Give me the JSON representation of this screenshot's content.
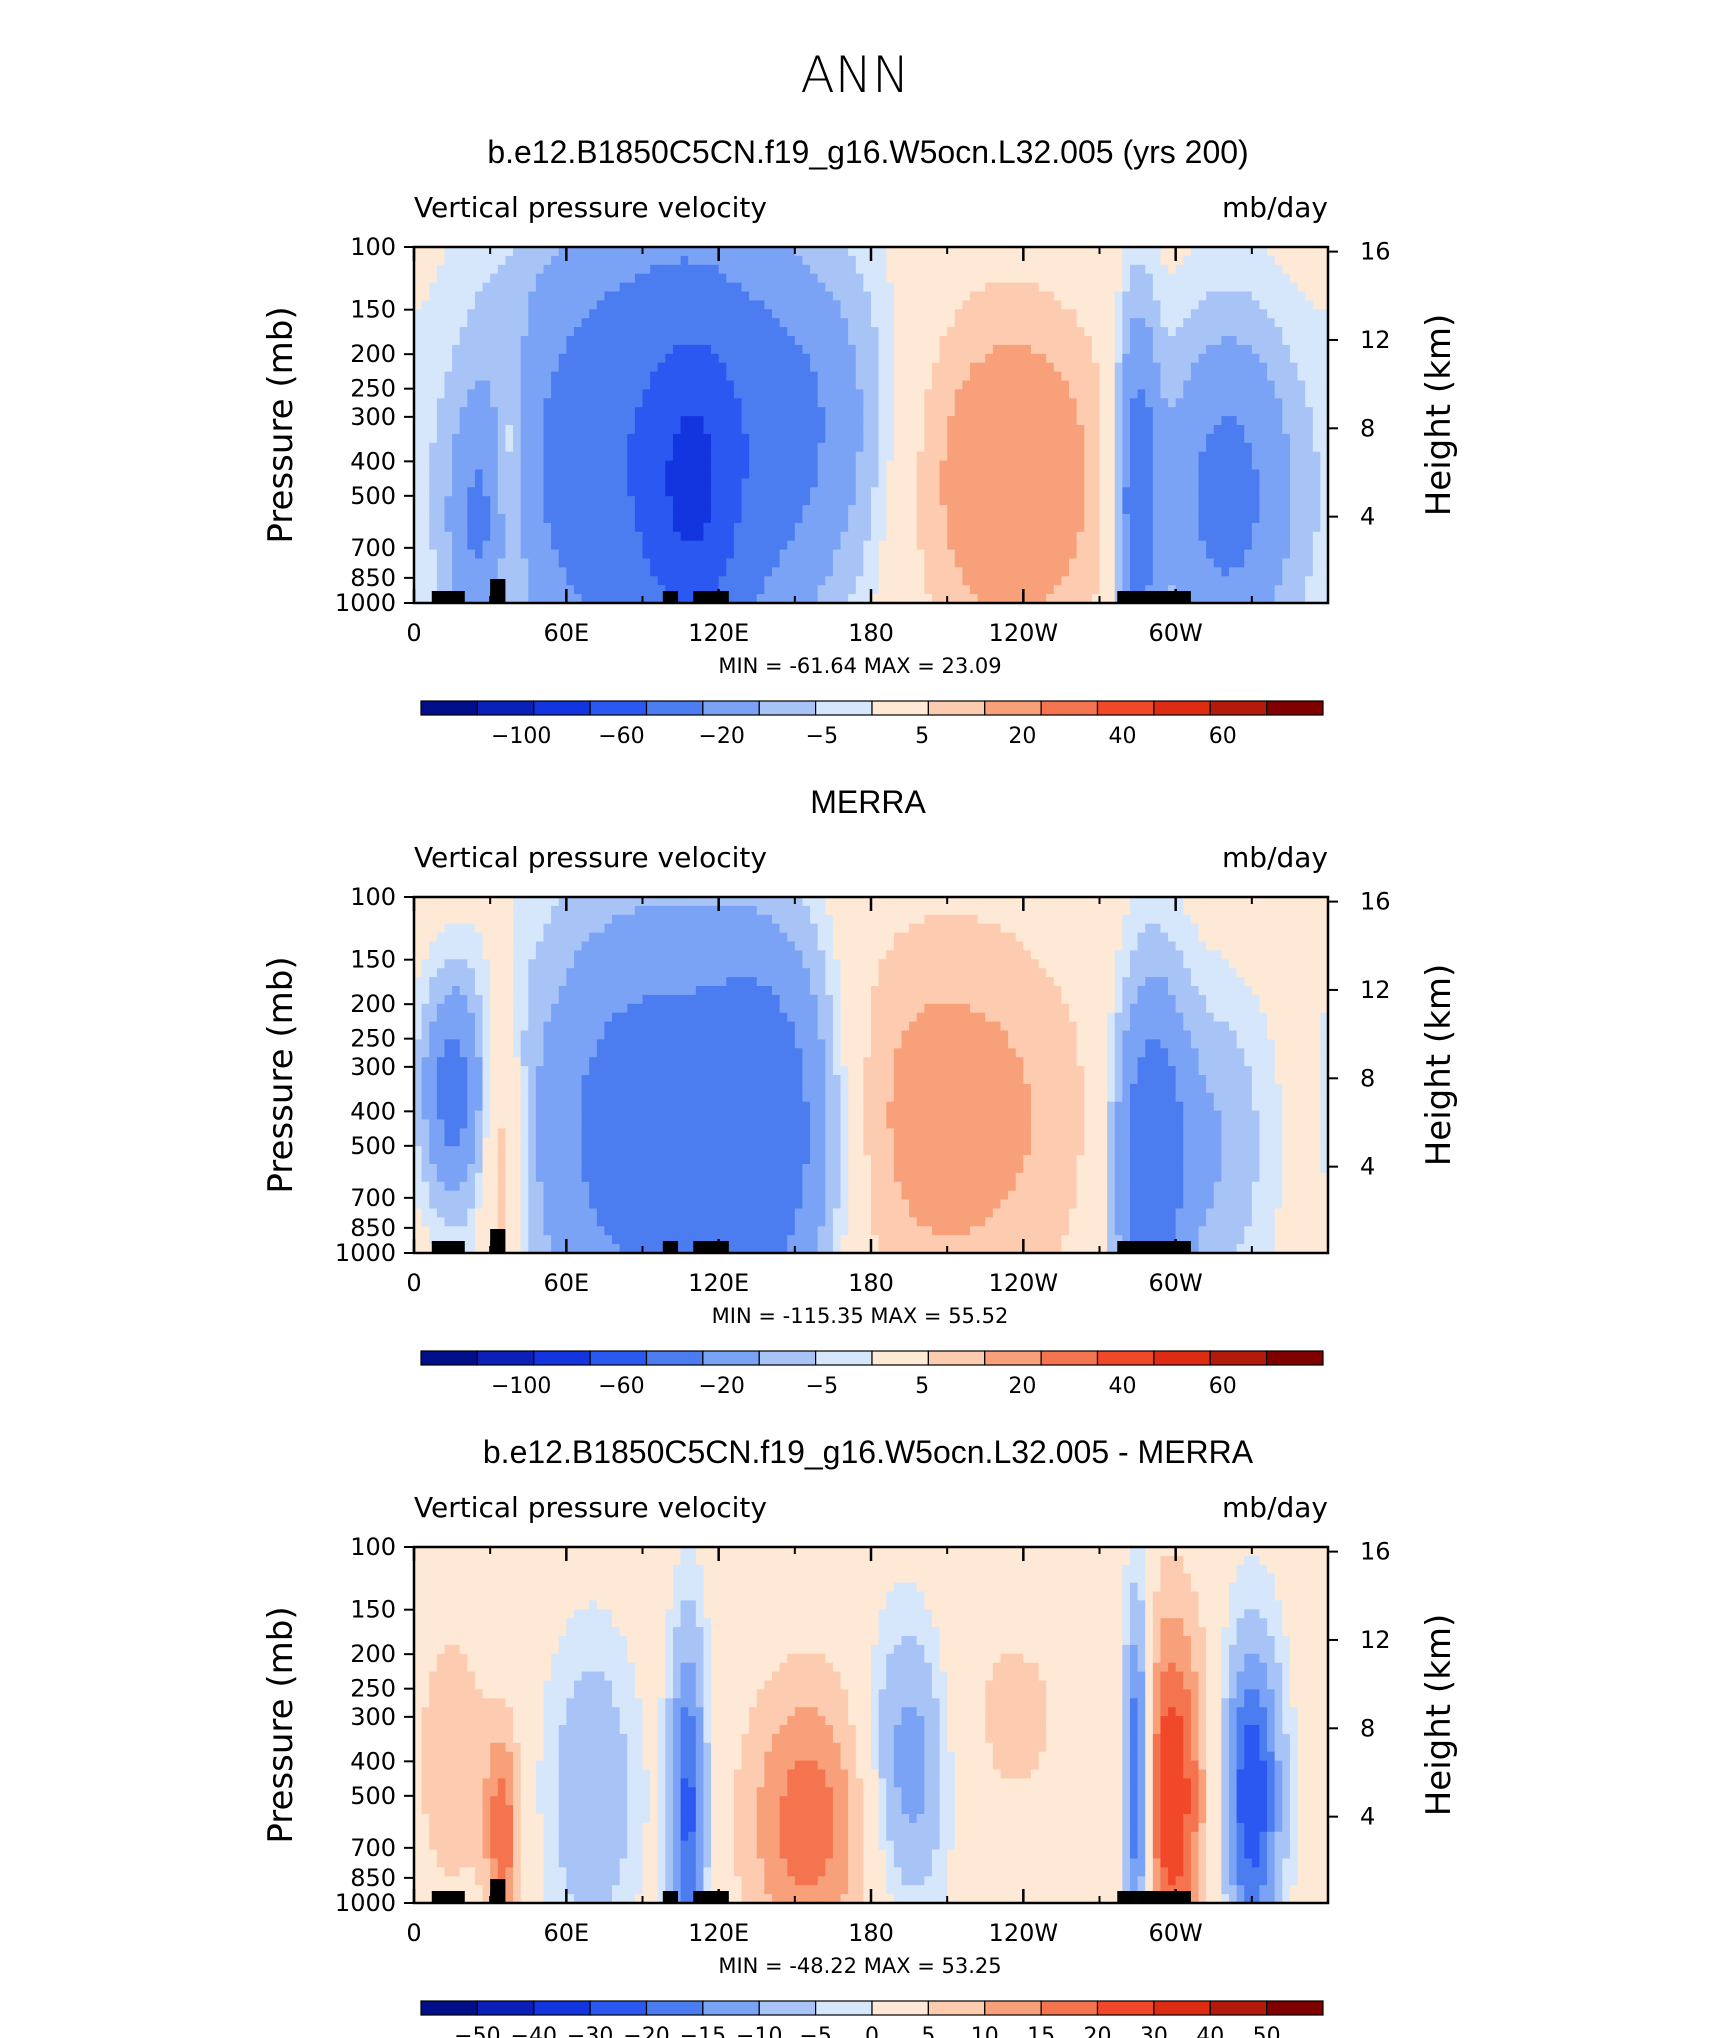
{
  "figure": {
    "title": "ANN"
  },
  "chart_data": [
    {
      "type": "heatmap",
      "title": "b.e12.B1850C5CN.f19_g16.W5ocn.L32.005 (yrs 200)",
      "left_string": "Vertical pressure velocity",
      "right_string": "mb/day",
      "ylabel": "Pressure (mb)",
      "ylabel_right": "Height (km)",
      "y_ticks": [
        "100",
        "150",
        "200",
        "250",
        "300",
        "400",
        "500",
        "700",
        "850",
        "1000"
      ],
      "y_right_ticks": [
        "16",
        "12",
        "8",
        "4"
      ],
      "x_ticks": [
        "0",
        "60E",
        "120E",
        "180",
        "120W",
        "60W"
      ],
      "stats": {
        "min_label": "MIN",
        "min": "-61.64",
        "max_label": "MAX",
        "max": "23.09"
      },
      "levels": [
        -100,
        -80,
        -60,
        -40,
        -20,
        -10,
        -5,
        -2,
        2,
        5,
        10,
        20,
        30,
        40,
        50,
        60
      ],
      "level_labels": [
        "−100",
        "−60",
        "−20",
        "−5",
        "5",
        "20",
        "40",
        "60"
      ],
      "features": [
        {
          "lon": 25,
          "p": 600,
          "v": -15,
          "w": 8,
          "h": 0.45
        },
        {
          "lon": 38,
          "p": 450,
          "v": 12,
          "w": 5,
          "h": 0.55
        },
        {
          "lon": 95,
          "p": 400,
          "v": -38,
          "w": 40,
          "h": 0.9
        },
        {
          "lon": 110,
          "p": 500,
          "v": -30,
          "w": 12,
          "h": 0.6
        },
        {
          "lon": 150,
          "p": 300,
          "v": -12,
          "w": 25,
          "h": 0.6
        },
        {
          "lon": 235,
          "p": 450,
          "v": 18,
          "w": 28,
          "h": 0.7
        },
        {
          "lon": 285,
          "p": 500,
          "v": -30,
          "w": 6,
          "h": 0.7
        },
        {
          "lon": 320,
          "p": 500,
          "v": -25,
          "w": 18,
          "h": 0.65
        }
      ]
    },
    {
      "type": "heatmap",
      "title": "MERRA",
      "left_string": "Vertical pressure velocity",
      "right_string": "mb/day",
      "ylabel": "Pressure (mb)",
      "ylabel_right": "Height (km)",
      "y_ticks": [
        "100",
        "150",
        "200",
        "250",
        "300",
        "400",
        "500",
        "700",
        "850",
        "1000"
      ],
      "y_right_ticks": [
        "16",
        "12",
        "8",
        "4"
      ],
      "x_ticks": [
        "0",
        "60E",
        "120E",
        "180",
        "120W",
        "60W"
      ],
      "stats": {
        "min_label": "MIN",
        "min": "-115.35",
        "max_label": "MAX",
        "max": "55.52"
      },
      "levels": [
        -100,
        -80,
        -60,
        -40,
        -20,
        -10,
        -5,
        -2,
        2,
        5,
        10,
        20,
        30,
        40,
        50,
        60
      ],
      "level_labels": [
        "−100",
        "−60",
        "−20",
        "−5",
        "5",
        "20",
        "40",
        "60"
      ],
      "features": [
        {
          "lon": 15,
          "p": 350,
          "v": -25,
          "w": 8,
          "h": 0.4
        },
        {
          "lon": 35,
          "p": 550,
          "v": 12,
          "w": 6,
          "h": 0.55
        },
        {
          "lon": 90,
          "p": 450,
          "v": -28,
          "w": 30,
          "h": 0.85
        },
        {
          "lon": 140,
          "p": 450,
          "v": -30,
          "w": 20,
          "h": 0.75
        },
        {
          "lon": 210,
          "p": 420,
          "v": 14,
          "w": 40,
          "h": 0.8
        },
        {
          "lon": 290,
          "p": 550,
          "v": -32,
          "w": 10,
          "h": 0.7
        },
        {
          "lon": 315,
          "p": 500,
          "v": -10,
          "w": 15,
          "h": 0.6
        }
      ]
    },
    {
      "type": "heatmap",
      "title": "b.e12.B1850C5CN.f19_g16.W5ocn.L32.005 - MERRA",
      "left_string": "Vertical pressure velocity",
      "right_string": "mb/day",
      "ylabel": "Pressure (mb)",
      "ylabel_right": "Height (km)",
      "y_ticks": [
        "100",
        "150",
        "200",
        "250",
        "300",
        "400",
        "500",
        "700",
        "850",
        "1000"
      ],
      "y_right_ticks": [
        "16",
        "12",
        "8",
        "4"
      ],
      "x_ticks": [
        "0",
        "60E",
        "120E",
        "180",
        "120W",
        "60W"
      ],
      "stats": {
        "min_label": "MIN",
        "min": "-48.22",
        "max_label": "MAX",
        "max": "53.25"
      },
      "levels": [
        -50,
        -40,
        -30,
        -20,
        -15,
        -10,
        -5,
        -2,
        2,
        5,
        10,
        15,
        20,
        30,
        40,
        50
      ],
      "level_labels": [
        "−50",
        "−40",
        "−30",
        "−20",
        "−15",
        "−10",
        "−5",
        "0",
        "5",
        "10",
        "15",
        "20",
        "30",
        "40",
        "50"
      ],
      "features": [
        {
          "lon": 15,
          "p": 400,
          "v": 10,
          "w": 10,
          "h": 0.55
        },
        {
          "lon": 35,
          "p": 650,
          "v": 18,
          "w": 5,
          "h": 0.45
        },
        {
          "lon": 70,
          "p": 500,
          "v": -10,
          "w": 12,
          "h": 0.6
        },
        {
          "lon": 108,
          "p": 550,
          "v": -22,
          "w": 5,
          "h": 0.7
        },
        {
          "lon": 155,
          "p": 600,
          "v": 18,
          "w": 18,
          "h": 0.6
        },
        {
          "lon": 195,
          "p": 400,
          "v": -15,
          "w": 12,
          "h": 0.55
        },
        {
          "lon": 235,
          "p": 300,
          "v": 6,
          "w": 25,
          "h": 0.6
        },
        {
          "lon": 285,
          "p": 450,
          "v": -30,
          "w": 4,
          "h": 0.7
        },
        {
          "lon": 298,
          "p": 500,
          "v": 25,
          "w": 10,
          "h": 0.75
        },
        {
          "lon": 330,
          "p": 500,
          "v": -25,
          "w": 8,
          "h": 0.6
        }
      ]
    }
  ],
  "colors": {
    "palette": [
      "#000e8a",
      "#0a20b8",
      "#1335e0",
      "#2b58f0",
      "#4c7df0",
      "#7ba3f5",
      "#a8c4f7",
      "#d6e7fb",
      "#fde9d6",
      "#fdccb0",
      "#f8a07a",
      "#f57450",
      "#f2482a",
      "#dd2c12",
      "#b31a0b",
      "#800000"
    ],
    "white": "#ffffff",
    "land": "#000000"
  }
}
